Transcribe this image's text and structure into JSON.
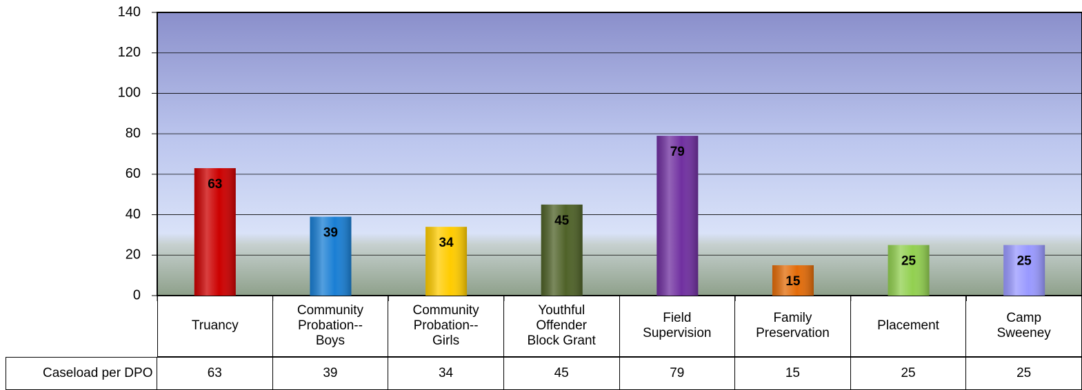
{
  "chart_data": {
    "type": "bar",
    "categories": [
      "Truancy",
      "Community Probation--Boys",
      "Community Probation--Girls",
      "Youthful Offender Block Grant",
      "Field Supervision",
      "Family Preservation",
      "Placement",
      "Camp Sweeney"
    ],
    "series": [
      {
        "name": "Caseload per DPO",
        "colors": [
          "#cc0000",
          "#1a7fd4",
          "#ffcc00",
          "#4f6228",
          "#7030a0",
          "#e36c09",
          "#92d050",
          "#9999ff"
        ],
        "values": [
          63,
          39,
          34,
          45,
          79,
          15,
          25,
          25
        ]
      }
    ],
    "ylim": [
      0,
      140
    ],
    "yticks": [
      0,
      20,
      40,
      60,
      80,
      100,
      120,
      140
    ],
    "grid": true
  }
}
